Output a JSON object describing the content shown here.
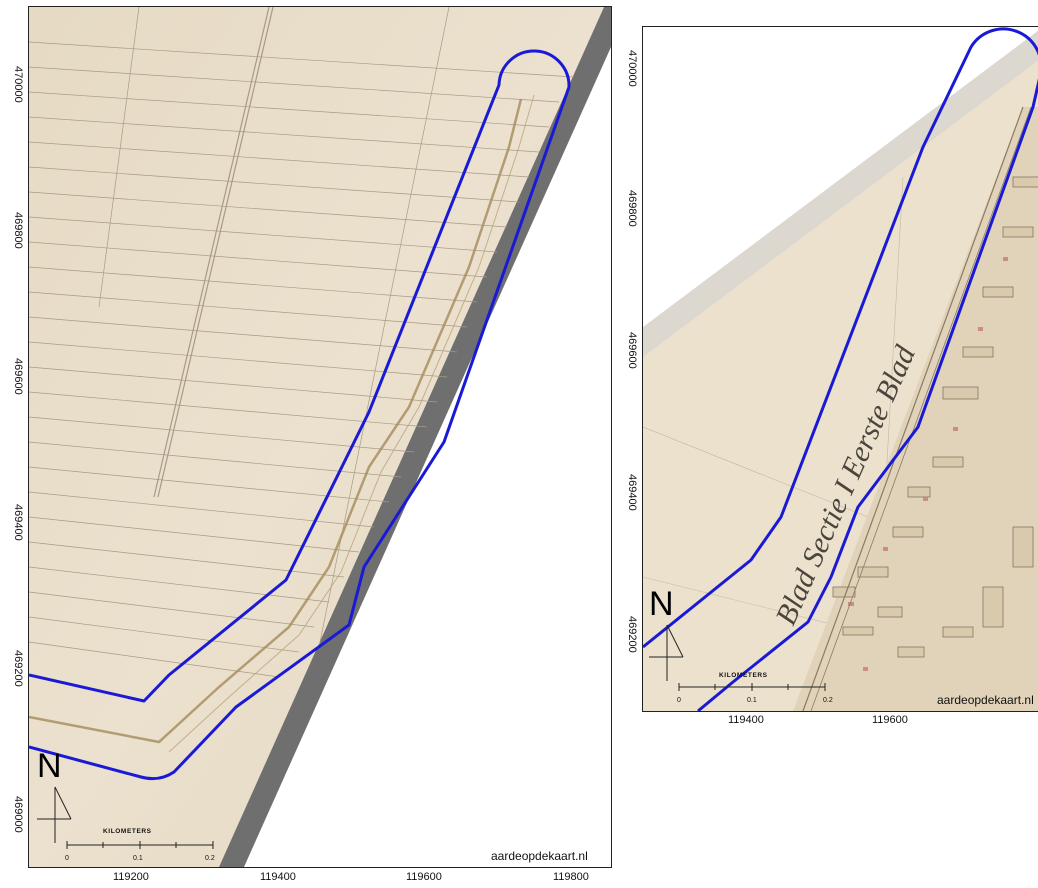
{
  "maps": [
    {
      "id": "left",
      "y_ticks": [
        "470000",
        "469800",
        "469600",
        "469400",
        "469200",
        "469000"
      ],
      "x_ticks": [
        "119200",
        "119400",
        "119600",
        "119800"
      ],
      "credit": "aardeopdekaart.nl",
      "north": "N",
      "scalebar": {
        "title": "KILOMETERS",
        "labels": [
          "0",
          "0.1",
          "0.2"
        ]
      }
    },
    {
      "id": "right",
      "y_ticks": [
        "470000",
        "469800",
        "469600",
        "469400",
        "469200"
      ],
      "x_ticks": [
        "119400",
        "119600"
      ],
      "credit": "aardeopdekaart.nl",
      "north": "N",
      "scalebar": {
        "title": "KILOMETERS",
        "labels": [
          "0",
          "0.1",
          "0.2"
        ]
      },
      "map_script": "Blad Sectie I Eerste Blad"
    }
  ],
  "colors": {
    "outline": "#1a1ad6",
    "parchment": "#e9dfcc",
    "shadow": "#6d6d6d"
  }
}
